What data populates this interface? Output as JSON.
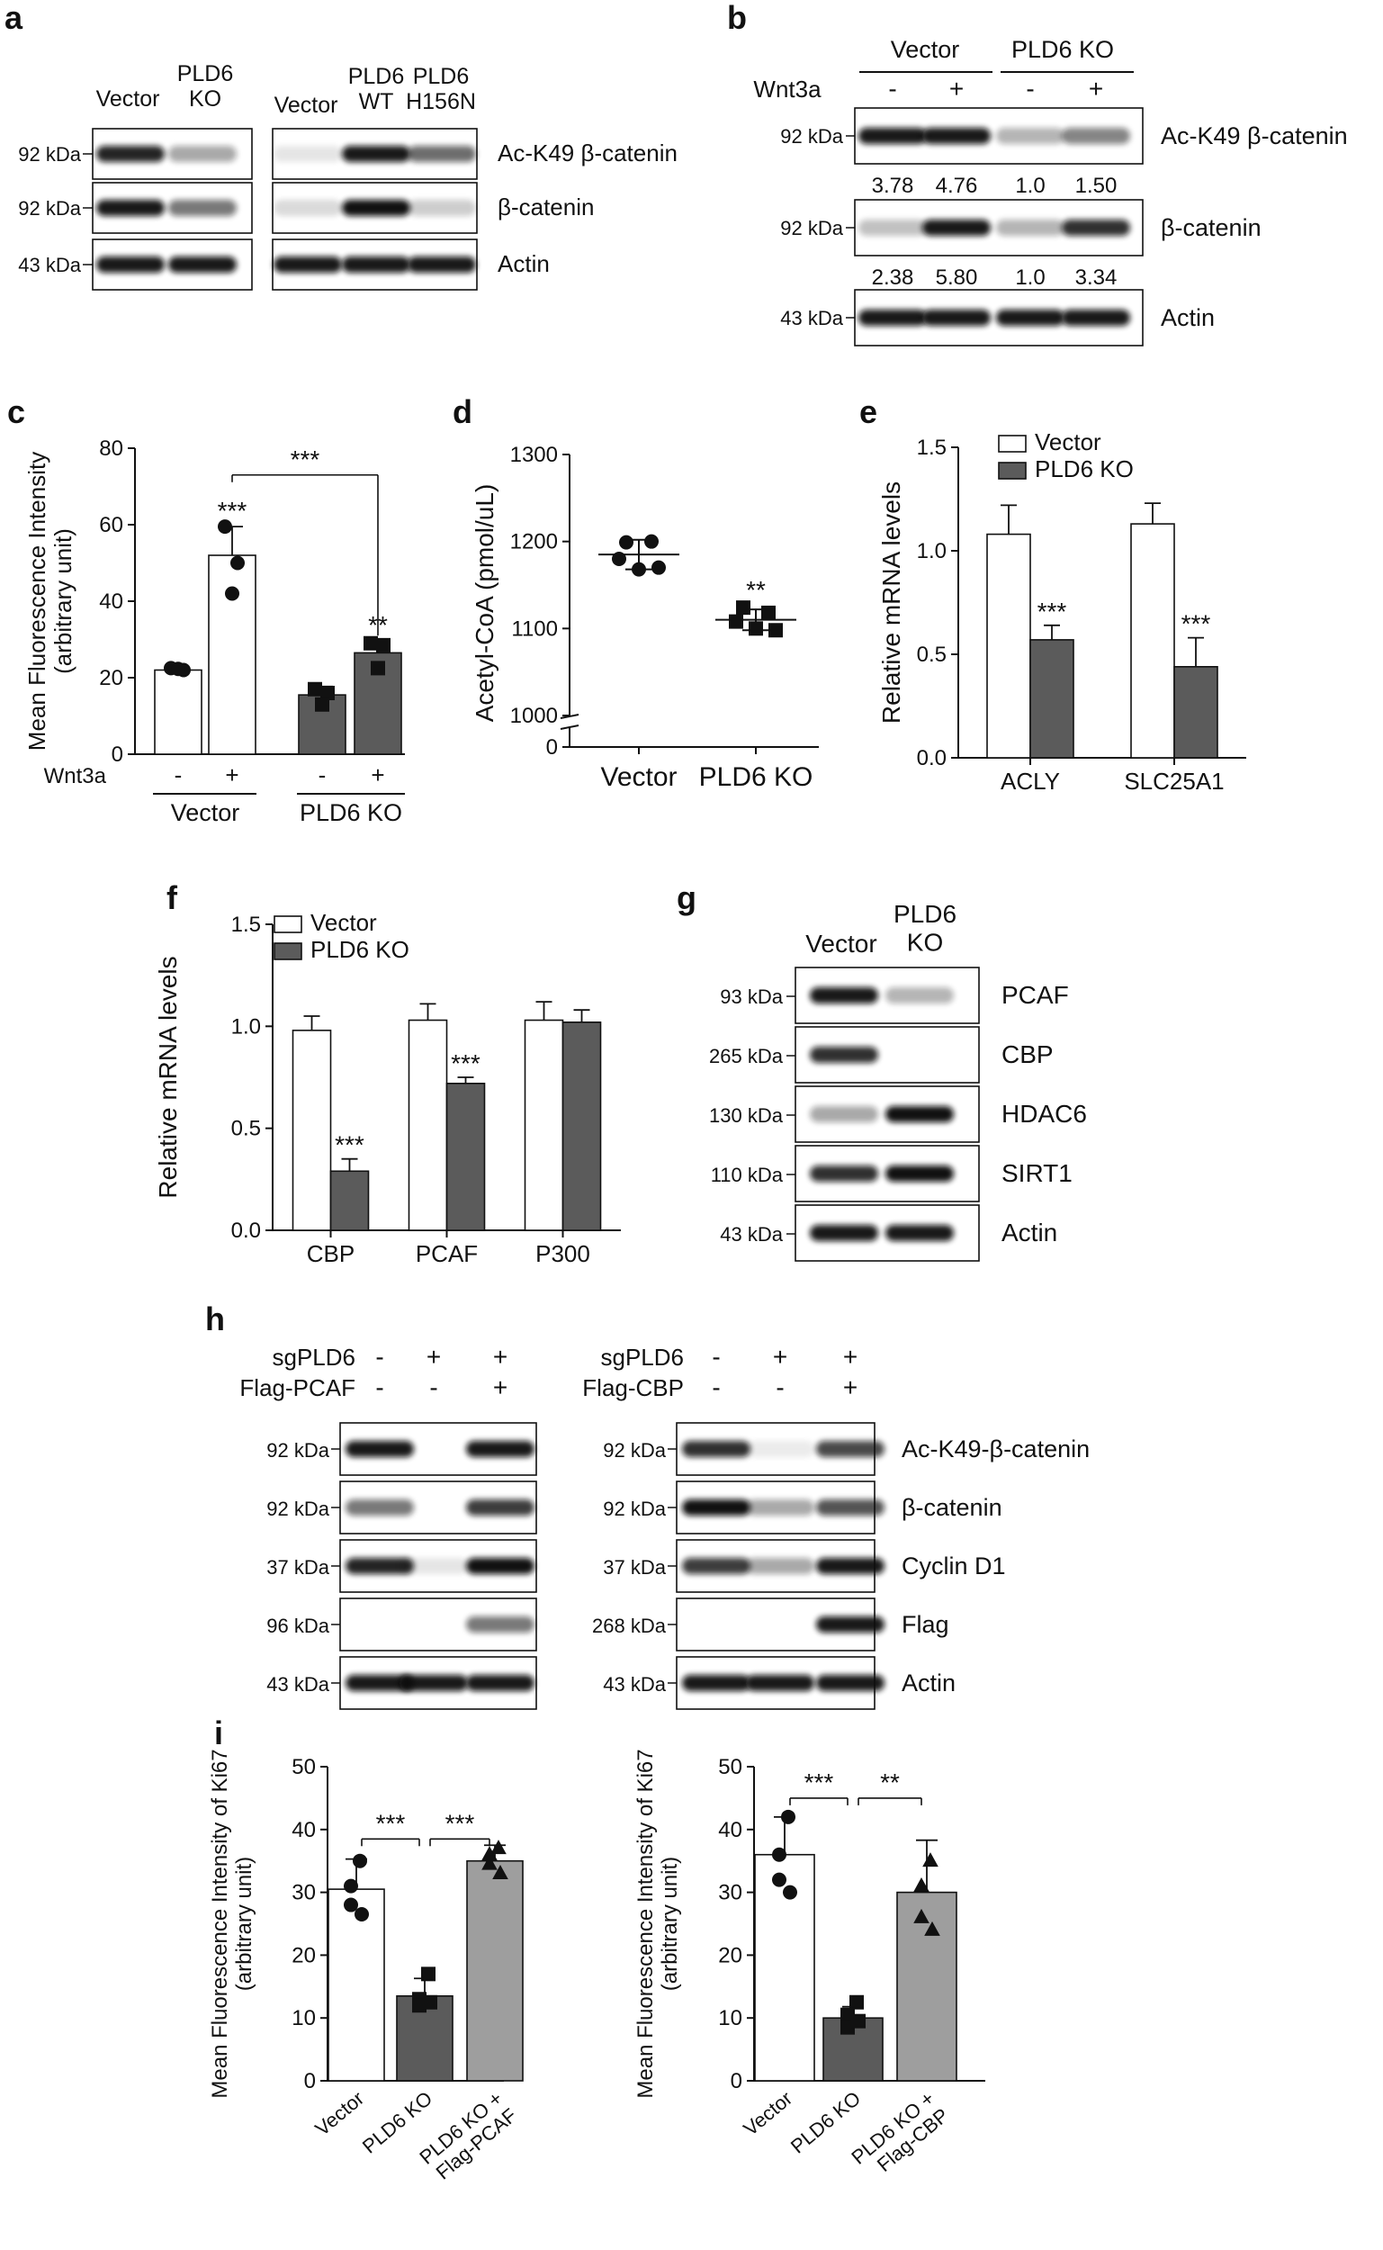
{
  "panels": {
    "a": {
      "letter": "a",
      "left_lanes": [
        "Vector",
        "PLD6\nKO"
      ],
      "right_lanes": [
        "Vector",
        "PLD6\nWT",
        "PLD6\nH156N"
      ],
      "rows": [
        {
          "mw": "92 kDa",
          "label": "Ac-K49 β-catenin"
        },
        {
          "mw": "92 kDa",
          "label": "β-catenin"
        },
        {
          "mw": "43 kDa",
          "label": "Actin"
        }
      ]
    },
    "b": {
      "letter": "b",
      "groups": [
        "Vector",
        "PLD6 KO"
      ],
      "treatment_label": "Wnt3a",
      "treatment_marks": [
        "-",
        "+",
        "-",
        "+"
      ],
      "rows": [
        {
          "mw": "92 kDa",
          "label": "Ac-K49 β-catenin",
          "quant": [
            "3.78",
            "4.76",
            "1.0",
            "1.50"
          ]
        },
        {
          "mw": "92 kDa",
          "label": "β-catenin",
          "quant": [
            "2.38",
            "5.80",
            "1.0",
            "3.34"
          ]
        },
        {
          "mw": "43 kDa",
          "label": "Actin",
          "quant": []
        }
      ]
    },
    "g": {
      "letter": "g",
      "lanes": [
        "Vector",
        "PLD6\nKO"
      ],
      "rows": [
        {
          "mw": "93 kDa",
          "label": "PCAF"
        },
        {
          "mw": "265 kDa",
          "label": "CBP"
        },
        {
          "mw": "130 kDa",
          "label": "HDAC6"
        },
        {
          "mw": "110 kDa",
          "label": "SIRT1"
        },
        {
          "mw": "43 kDa",
          "label": "Actin"
        }
      ]
    },
    "h": {
      "letter": "h",
      "left": {
        "conditions": [
          {
            "name": "sgPLD6",
            "marks": [
              "-",
              "+",
              "+"
            ]
          },
          {
            "name": "Flag-PCAF",
            "marks": [
              "-",
              "-",
              "+"
            ]
          }
        ],
        "mw": [
          "92 kDa",
          "92 kDa",
          "37 kDa",
          "96 kDa",
          "43 kDa"
        ]
      },
      "right": {
        "conditions": [
          {
            "name": "sgPLD6",
            "marks": [
              "-",
              "+",
              "+"
            ]
          },
          {
            "name": "Flag-CBP",
            "marks": [
              "-",
              "-",
              "+"
            ]
          }
        ],
        "mw": [
          "92 kDa",
          "92 kDa",
          "37 kDa",
          "268 kDa",
          "43 kDa"
        ]
      },
      "row_labels": [
        "Ac-K49-β-catenin",
        "β-catenin",
        "Cyclin D1",
        "Flag",
        "Actin"
      ]
    }
  },
  "chart_data": [
    {
      "id": "c",
      "letter": "c",
      "type": "bar",
      "ylabel": "Mean Fluorescence Intensity\n(arbitrary unit)",
      "ylim": [
        0,
        80
      ],
      "yticks": [
        "0",
        "20",
        "40",
        "60",
        "80"
      ],
      "treatment_label": "Wnt3a",
      "treatment_marks": [
        "-",
        "+",
        "-",
        "+"
      ],
      "groups": [
        "Vector",
        "PLD6 KO"
      ],
      "bars": [
        {
          "value": 22,
          "err": 0.8,
          "color": "#ffffff",
          "marker": "circle",
          "points": [
            22.5,
            22.0,
            22.3
          ],
          "sig": ""
        },
        {
          "value": 52,
          "err": 7.5,
          "color": "#ffffff",
          "marker": "circle",
          "points": [
            59.5,
            50.0,
            42.0
          ],
          "sig": "***"
        },
        {
          "value": 15.5,
          "err": 2.2,
          "color": "#5b5b5b",
          "marker": "square",
          "points": [
            17.0,
            16.0,
            13.0
          ],
          "sig": ""
        },
        {
          "value": 26.5,
          "err": 3.2,
          "color": "#5b5b5b",
          "marker": "square",
          "points": [
            29.0,
            28.5,
            22.5
          ],
          "sig": "**"
        }
      ],
      "bracket": {
        "from": 1,
        "to": 3,
        "label": "***",
        "y": 73
      }
    },
    {
      "id": "d",
      "letter": "d",
      "type": "scatter",
      "ylabel": "Acetyl-CoA (pmol/uL)",
      "ylim": [
        1000,
        1300
      ],
      "yticks": [
        "1000",
        "1100",
        "1200",
        "1300"
      ],
      "extra_tick": "0",
      "categories": [
        "Vector",
        "PLD6 KO"
      ],
      "groups": [
        {
          "marker": "circle",
          "mean": 1185,
          "sd": 17,
          "points": [
            1199,
            1200,
            1180,
            1168,
            1170
          ],
          "sig": ""
        },
        {
          "marker": "square",
          "mean": 1110,
          "sd": 12,
          "points": [
            1124,
            1118,
            1108,
            1100,
            1098
          ],
          "sig": "**"
        }
      ]
    },
    {
      "id": "e",
      "letter": "e",
      "type": "bar",
      "ylabel": "Relative mRNA levels",
      "ylim": [
        0,
        1.5
      ],
      "yticks": [
        "0.0",
        "0.5",
        "1.0",
        "1.5"
      ],
      "categories": [
        "ACLY",
        "SLC25A1"
      ],
      "series": [
        {
          "name": "Vector",
          "color": "#ffffff",
          "values": [
            1.08,
            1.13
          ],
          "err": [
            0.14,
            0.1
          ],
          "sig": [
            "",
            ""
          ]
        },
        {
          "name": "PLD6 KO",
          "color": "#5b5b5b",
          "values": [
            0.57,
            0.44
          ],
          "err": [
            0.07,
            0.14
          ],
          "sig": [
            "***",
            "***"
          ]
        }
      ]
    },
    {
      "id": "f",
      "letter": "f",
      "type": "bar",
      "ylabel": "Relative mRNA levels",
      "ylim": [
        0,
        1.5
      ],
      "yticks": [
        "0.0",
        "0.5",
        "1.0",
        "1.5"
      ],
      "categories": [
        "CBP",
        "PCAF",
        "P300"
      ],
      "series": [
        {
          "name": "Vector",
          "color": "#ffffff",
          "values": [
            0.98,
            1.03,
            1.03
          ],
          "err": [
            0.07,
            0.08,
            0.09
          ],
          "sig": [
            "",
            "",
            ""
          ]
        },
        {
          "name": "PLD6 KO",
          "color": "#5b5b5b",
          "values": [
            0.29,
            0.72,
            1.02
          ],
          "err": [
            0.06,
            0.03,
            0.06
          ],
          "sig": [
            "***",
            "***",
            ""
          ]
        }
      ]
    },
    {
      "id": "i1",
      "letter": "i",
      "type": "bar",
      "ylabel": "Mean Fluorescence Intensity of Ki67\n(arbitrary unit)",
      "ylim": [
        0,
        50
      ],
      "yticks": [
        "0",
        "10",
        "20",
        "30",
        "40",
        "50"
      ],
      "categories": [
        "Vector",
        "PLD6 KO",
        "PLD6 KO +\nFlag-PCAF"
      ],
      "bars": [
        {
          "value": 30.5,
          "err": 4.8,
          "color": "#ffffff",
          "marker": "circle",
          "points": [
            35.0,
            31.0,
            28.0,
            26.5
          ]
        },
        {
          "value": 13.5,
          "err": 2.8,
          "color": "#5b5b5b",
          "marker": "square",
          "points": [
            17.0,
            13.0,
            12.0,
            12.5
          ]
        },
        {
          "value": 35.0,
          "err": 2.5,
          "color": "#9e9e9e",
          "marker": "triangle",
          "points": [
            37.0,
            36.0,
            34.5,
            33.0
          ]
        }
      ],
      "brackets": [
        {
          "from": 0,
          "to": 1,
          "label": "***",
          "y": 38.5
        },
        {
          "from": 1,
          "to": 2,
          "label": "***",
          "y": 38.5
        }
      ]
    },
    {
      "id": "i2",
      "letter": "",
      "type": "bar",
      "ylabel": "Mean Fluorescence Intensity of Ki67\n(arbitrary unit)",
      "ylim": [
        0,
        50
      ],
      "yticks": [
        "0",
        "10",
        "20",
        "30",
        "40",
        "50"
      ],
      "categories": [
        "Vector",
        "PLD6 KO",
        "PLD6 KO +\nFlag-CBP"
      ],
      "bars": [
        {
          "value": 36,
          "err": 6.0,
          "color": "#ffffff",
          "marker": "circle",
          "points": [
            42.0,
            36.0,
            32.0,
            30.0
          ]
        },
        {
          "value": 10,
          "err": 1.8,
          "color": "#5b5b5b",
          "marker": "square",
          "points": [
            12.5,
            10.5,
            8.5,
            9.5
          ]
        },
        {
          "value": 30,
          "err": 8.3,
          "color": "#9e9e9e",
          "marker": "triangle",
          "points": [
            35.0,
            31.0,
            26.0,
            24.0
          ]
        }
      ],
      "brackets": [
        {
          "from": 0,
          "to": 1,
          "label": "***",
          "y": 45
        },
        {
          "from": 1,
          "to": 2,
          "label": "**",
          "y": 45
        }
      ]
    }
  ]
}
